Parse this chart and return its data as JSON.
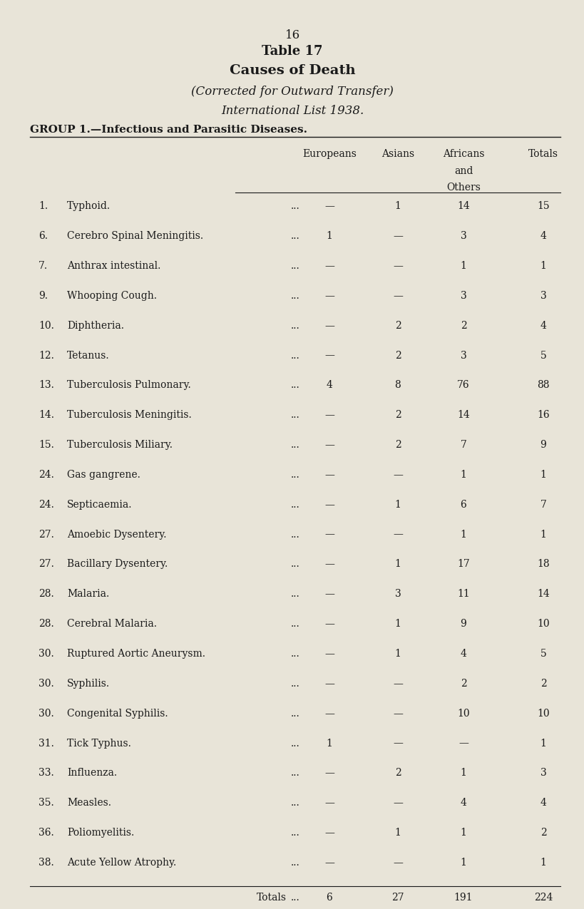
{
  "page_number": "16",
  "title1": "Table 17",
  "title2": "Causes of Death",
  "title3": "(Corrected for Outward Transfer)",
  "title4": "International List 1938.",
  "group_header": "GROUP 1.—Infectious and Parasitic Diseases.",
  "rows": [
    {
      "num": "1.",
      "name": "Typhoid.",
      "europeans": "—",
      "asians": "1",
      "africans": "14",
      "totals": "15"
    },
    {
      "num": "6.",
      "name": "Cerebro Spinal Meningitis.",
      "europeans": "1",
      "asians": "—",
      "africans": "3",
      "totals": "4"
    },
    {
      "num": "7.",
      "name": "Anthrax intestinal.",
      "europeans": "—",
      "asians": "—",
      "africans": "1",
      "totals": "1"
    },
    {
      "num": "9.",
      "name": "Whooping Cough.",
      "europeans": "—",
      "asians": "—",
      "africans": "3",
      "totals": "3"
    },
    {
      "num": "10.",
      "name": "Diphtheria.",
      "europeans": "—",
      "asians": "2",
      "africans": "2",
      "totals": "4"
    },
    {
      "num": "12.",
      "name": "Tetanus.",
      "europeans": "—",
      "asians": "2",
      "africans": "3",
      "totals": "5"
    },
    {
      "num": "13.",
      "name": "Tuberculosis Pulmonary.",
      "europeans": "4",
      "asians": "8",
      "africans": "76",
      "totals": "88"
    },
    {
      "num": "14.",
      "name": "Tuberculosis Meningitis.",
      "europeans": "—",
      "asians": "2",
      "africans": "14",
      "totals": "16"
    },
    {
      "num": "15.",
      "name": "Tuberculosis Miliary.",
      "europeans": "—",
      "asians": "2",
      "africans": "7",
      "totals": "9"
    },
    {
      "num": "24.",
      "name": "Gas gangrene.",
      "europeans": "—",
      "asians": "—",
      "africans": "1",
      "totals": "1"
    },
    {
      "num": "24.",
      "name": "Septicaemia.",
      "europeans": "—",
      "asians": "1",
      "africans": "6",
      "totals": "7"
    },
    {
      "num": "27.",
      "name": "Amoebic Dysentery.",
      "europeans": "—",
      "asians": "—",
      "africans": "1",
      "totals": "1"
    },
    {
      "num": "27.",
      "name": "Bacillary Dysentery.",
      "europeans": "—",
      "asians": "1",
      "africans": "17",
      "totals": "18"
    },
    {
      "num": "28.",
      "name": "Malaria.",
      "europeans": "—",
      "asians": "3",
      "africans": "11",
      "totals": "14"
    },
    {
      "num": "28.",
      "name": "Cerebral Malaria.",
      "europeans": "—",
      "asians": "1",
      "africans": "9",
      "totals": "10"
    },
    {
      "num": "30.",
      "name": "Ruptured Aortic Aneurysm.",
      "europeans": "—",
      "asians": "1",
      "africans": "4",
      "totals": "5"
    },
    {
      "num": "30.",
      "name": "Syphilis.",
      "europeans": "—",
      "asians": "—",
      "africans": "2",
      "totals": "2"
    },
    {
      "num": "30.",
      "name": "Congenital Syphilis.",
      "europeans": "—",
      "asians": "—",
      "africans": "10",
      "totals": "10"
    },
    {
      "num": "31.",
      "name": "Tick Typhus.",
      "europeans": "1",
      "asians": "—",
      "africans": "—",
      "totals": "1"
    },
    {
      "num": "33.",
      "name": "Influenza.",
      "europeans": "—",
      "asians": "2",
      "africans": "1",
      "totals": "3"
    },
    {
      "num": "35.",
      "name": "Measles.",
      "europeans": "—",
      "asians": "—",
      "africans": "4",
      "totals": "4"
    },
    {
      "num": "36.",
      "name": "Poliomyelitis.",
      "europeans": "—",
      "asians": "1",
      "africans": "1",
      "totals": "2"
    },
    {
      "num": "38.",
      "name": "Acute Yellow Atrophy.",
      "europeans": "—",
      "asians": "—",
      "africans": "1",
      "totals": "1"
    }
  ],
  "totals_row": {
    "label": "Totals",
    "europeans": "6",
    "asians": "27",
    "africans": "191",
    "totals": "224"
  },
  "bg_color": "#e8e4d8",
  "text_color": "#1a1a1a"
}
